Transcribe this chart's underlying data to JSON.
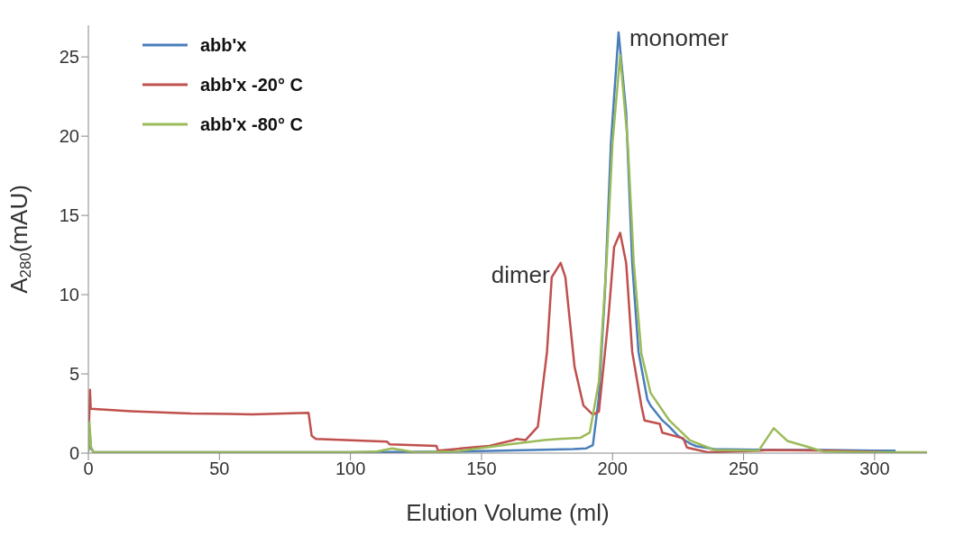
{
  "chart_data": {
    "type": "line",
    "xlabel": "Elution Volume (ml)",
    "ylabel": "A$_{280}$(mAU)",
    "xlim": [
      0,
      320
    ],
    "xticks": [
      0,
      50,
      100,
      150,
      200,
      250,
      300
    ],
    "ylim": [
      0,
      27
    ],
    "yticks": [
      0,
      5,
      10,
      15,
      20,
      25
    ],
    "grid": false,
    "legend": "top left",
    "marker": "none",
    "line_style": "solid",
    "annotations": [
      {
        "text": "dimer",
        "x": 180.2,
        "y": 12
      },
      {
        "text": "monomer",
        "x": 202.3,
        "y": 26.5
      }
    ],
    "series": [
      {
        "name": "abb'x",
        "color": "#4a7ebb",
        "x": [
          0,
          0.4,
          1,
          2,
          20,
          60,
          100,
          140,
          170,
          185,
          190,
          192.5,
          194.8,
          197.1,
          199.4,
          202.3,
          205.2,
          207.5,
          209.9,
          213.3,
          214.5,
          219.1,
          221.5,
          224.9,
          229.6,
          231.9,
          238.8,
          260,
          280,
          300,
          308
        ],
        "values": [
          0.1,
          1.5,
          0.3,
          0.05,
          0.05,
          0.05,
          0.05,
          0.1,
          0.2,
          0.25,
          0.3,
          0.5,
          3.55,
          10.15,
          19.6,
          26.55,
          21.5,
          12,
          6.4,
          3.37,
          3.0,
          2.05,
          1.7,
          1.1,
          0.6,
          0.44,
          0.25,
          0.2,
          0.2,
          0.15,
          0.15
        ]
      },
      {
        "name": "abb'x -20° C",
        "color": "#c0504d",
        "x": [
          0,
          0.6,
          0.9,
          16.2,
          39,
          62.6,
          84,
          85.2,
          86.8,
          114,
          115,
          132.8,
          133.4,
          153,
          162.3,
          163.3,
          166.8,
          171.5,
          175,
          176.8,
          180.2,
          182,
          185.5,
          188.9,
          192.5,
          194.8,
          198.3,
          200.6,
          202.9,
          205.2,
          207.5,
          211,
          212.2,
          218,
          219,
          227,
          228.4,
          236.5,
          256,
          260,
          283,
          303.7
        ],
        "values": [
          0.2,
          4,
          2.8,
          2.65,
          2.5,
          2.45,
          2.55,
          1.1,
          0.9,
          0.72,
          0.55,
          0.46,
          0.16,
          0.46,
          0.82,
          0.9,
          0.82,
          1.67,
          6.4,
          11.1,
          12,
          11.1,
          5.45,
          3,
          2.42,
          2.62,
          8.3,
          13,
          13.9,
          12,
          6.4,
          3,
          2.06,
          1.85,
          1.29,
          0.93,
          0.35,
          0.05,
          0.15,
          0.2,
          0.15,
          0.05
        ]
      },
      {
        "name": "abb'x -80° C",
        "color": "#9bbb59",
        "x": [
          0,
          0.4,
          1,
          2,
          50,
          100,
          110,
          115.9,
          125,
          140,
          160,
          174,
          179.7,
          187.8,
          191.3,
          194.8,
          197.7,
          200,
          202.9,
          205.8,
          208.1,
          211,
          214.5,
          221.5,
          229.6,
          238.8,
          255.7,
          261.5,
          266.7,
          273.6,
          280.4,
          300,
          320
        ],
        "values": [
          0.1,
          1.95,
          0.4,
          0.05,
          0.05,
          0.05,
          0.1,
          0.3,
          0.05,
          0.1,
          0.54,
          0.82,
          0.9,
          0.97,
          1.3,
          4.5,
          12,
          19.6,
          25.1,
          19.6,
          12,
          6.3,
          3.8,
          2.1,
          0.8,
          0.2,
          0.15,
          1.57,
          0.77,
          0.44,
          0.1,
          0.05,
          0.05
        ]
      }
    ]
  }
}
